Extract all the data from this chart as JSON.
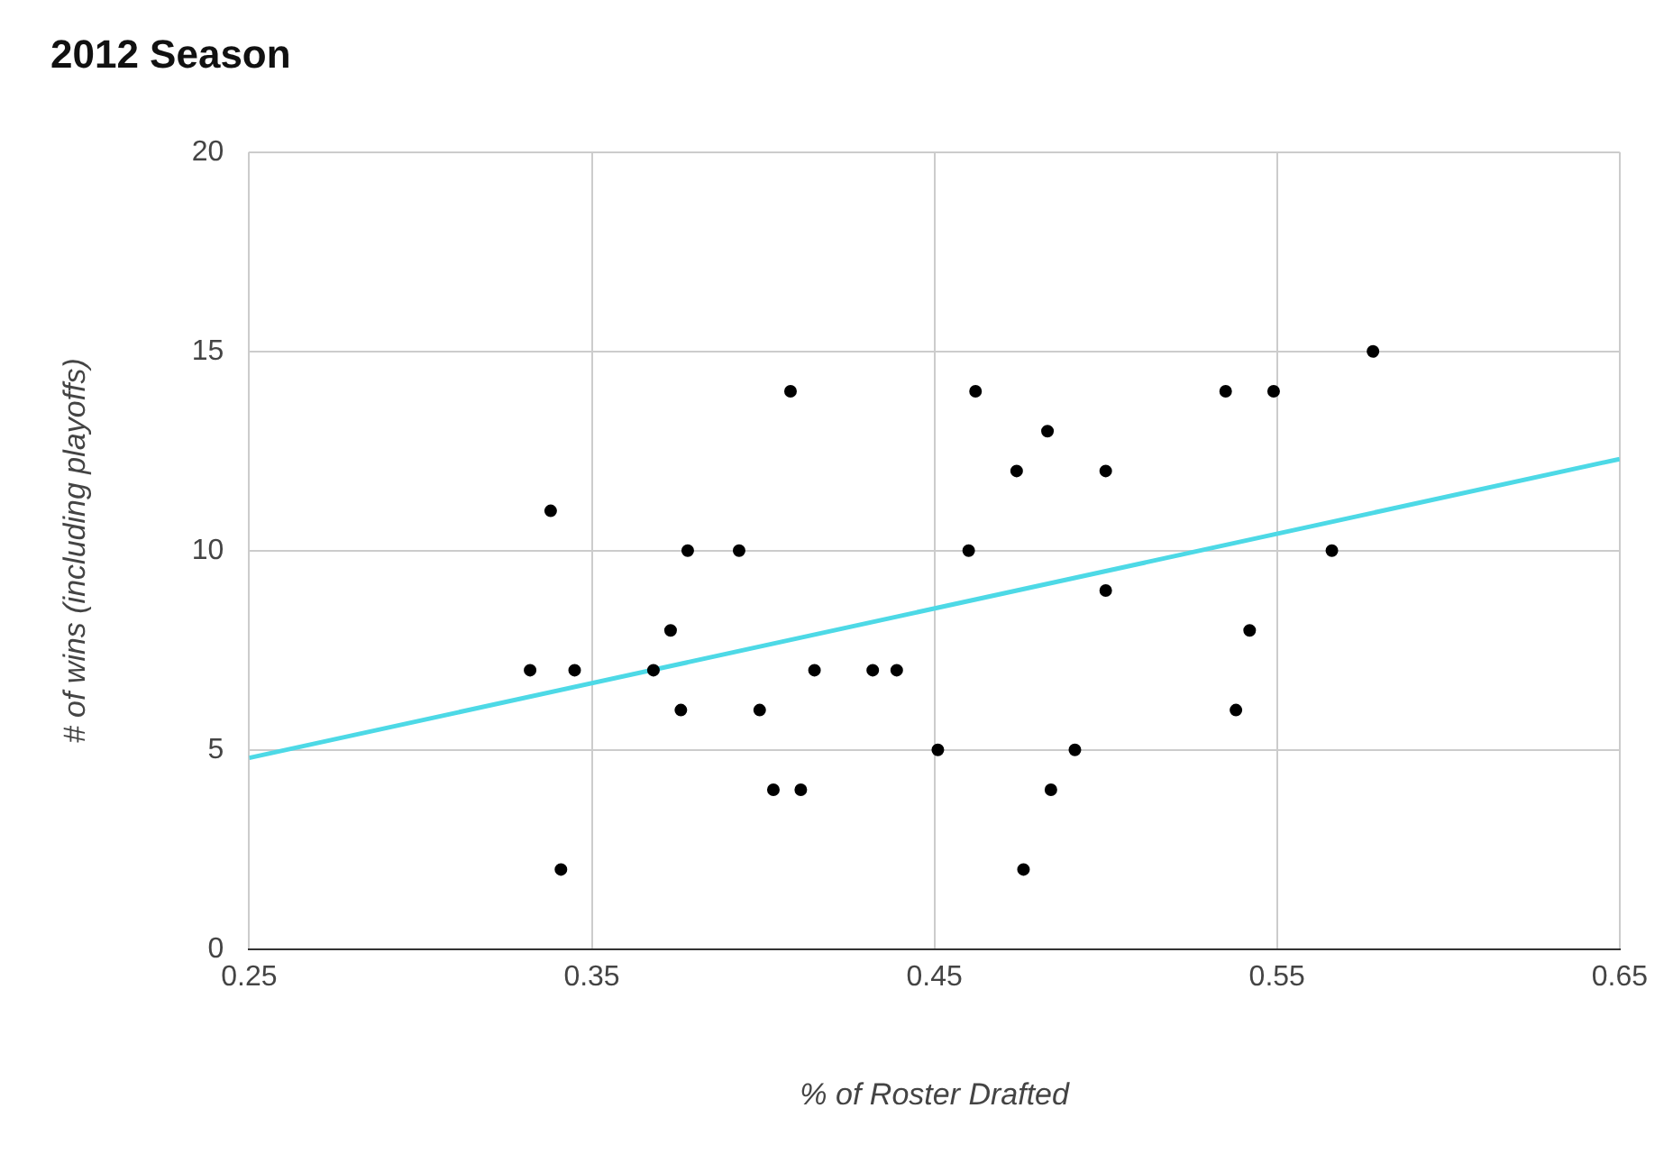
{
  "chart_data": {
    "type": "scatter",
    "title": "2012 Season",
    "xlabel": "% of Roster Drafted",
    "ylabel": "# of wins (including playoffs)",
    "xlim": [
      0.25,
      0.65
    ],
    "xticks": [
      0.25,
      0.35,
      0.45,
      0.55,
      0.65
    ],
    "ylim": [
      0,
      20
    ],
    "yticks": [
      0,
      5,
      10,
      15,
      20
    ],
    "grid": true,
    "legend": false,
    "marker": "circle",
    "series": [
      {
        "color": "#000000",
        "x": [
          0.332,
          0.338,
          0.345,
          0.341,
          0.368,
          0.373,
          0.376,
          0.378,
          0.393,
          0.399,
          0.403,
          0.411,
          0.415,
          0.408,
          0.432,
          0.439,
          0.451,
          0.46,
          0.462,
          0.474,
          0.476,
          0.483,
          0.484,
          0.491,
          0.5,
          0.5,
          0.535,
          0.538,
          0.549,
          0.542,
          0.566,
          0.578
        ],
        "values": [
          7,
          11,
          7,
          2,
          7,
          8,
          6,
          10,
          10,
          6,
          4,
          4,
          7,
          14,
          7,
          7,
          5,
          10,
          14,
          12,
          2,
          13,
          4,
          5,
          12,
          9,
          14,
          6,
          14,
          8,
          10,
          15
        ]
      },
      {
        "type": "line",
        "color": "#4dd9e6",
        "marker": "none",
        "x": [
          0.25,
          0.65
        ],
        "values": [
          4.8,
          12.3
        ]
      }
    ]
  }
}
